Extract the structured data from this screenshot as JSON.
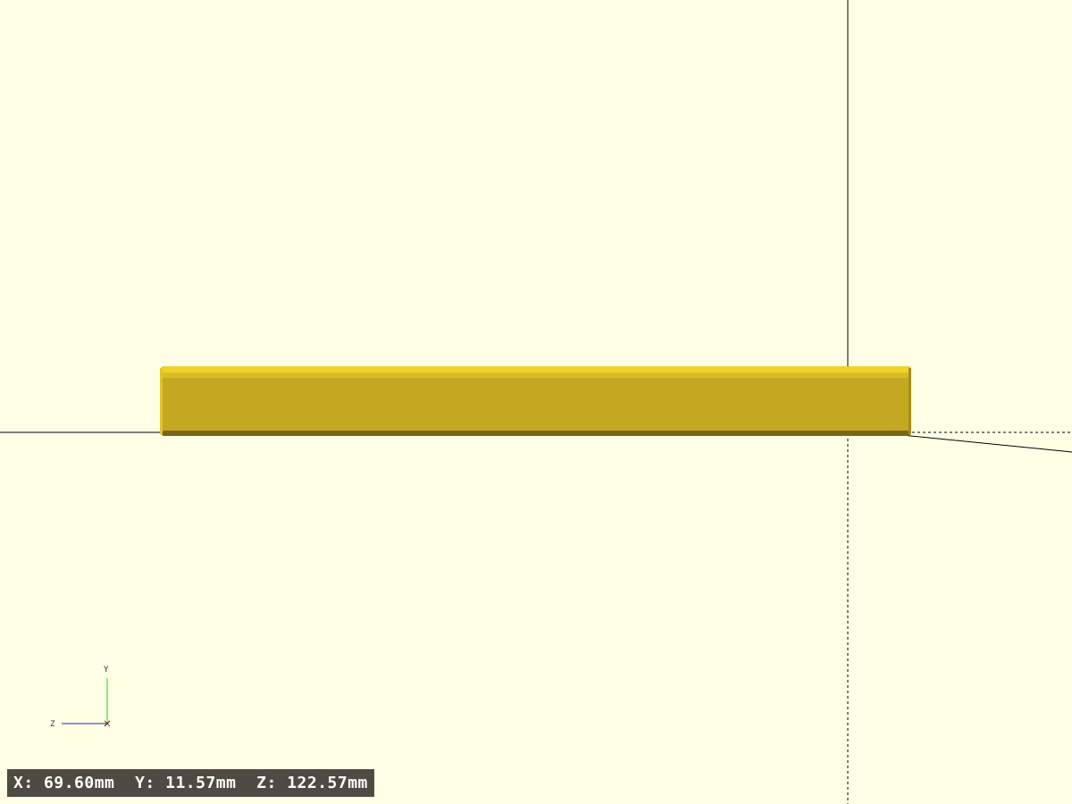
{
  "viewport": {
    "background": "#ffffe5"
  },
  "model": {
    "color_top": "#f1d22a",
    "color_front": "#c4a822",
    "color_edge": "#7a6614"
  },
  "axis_gizmo": {
    "y_label": "Y",
    "z_label": "Z",
    "y_color": "#22cc22",
    "z_color": "#2222cc"
  },
  "status": {
    "x_label": "X:",
    "x_value": "69.60mm",
    "y_label": "Y:",
    "y_value": "11.57mm",
    "z_label": "Z:",
    "z_value": "122.57mm"
  }
}
